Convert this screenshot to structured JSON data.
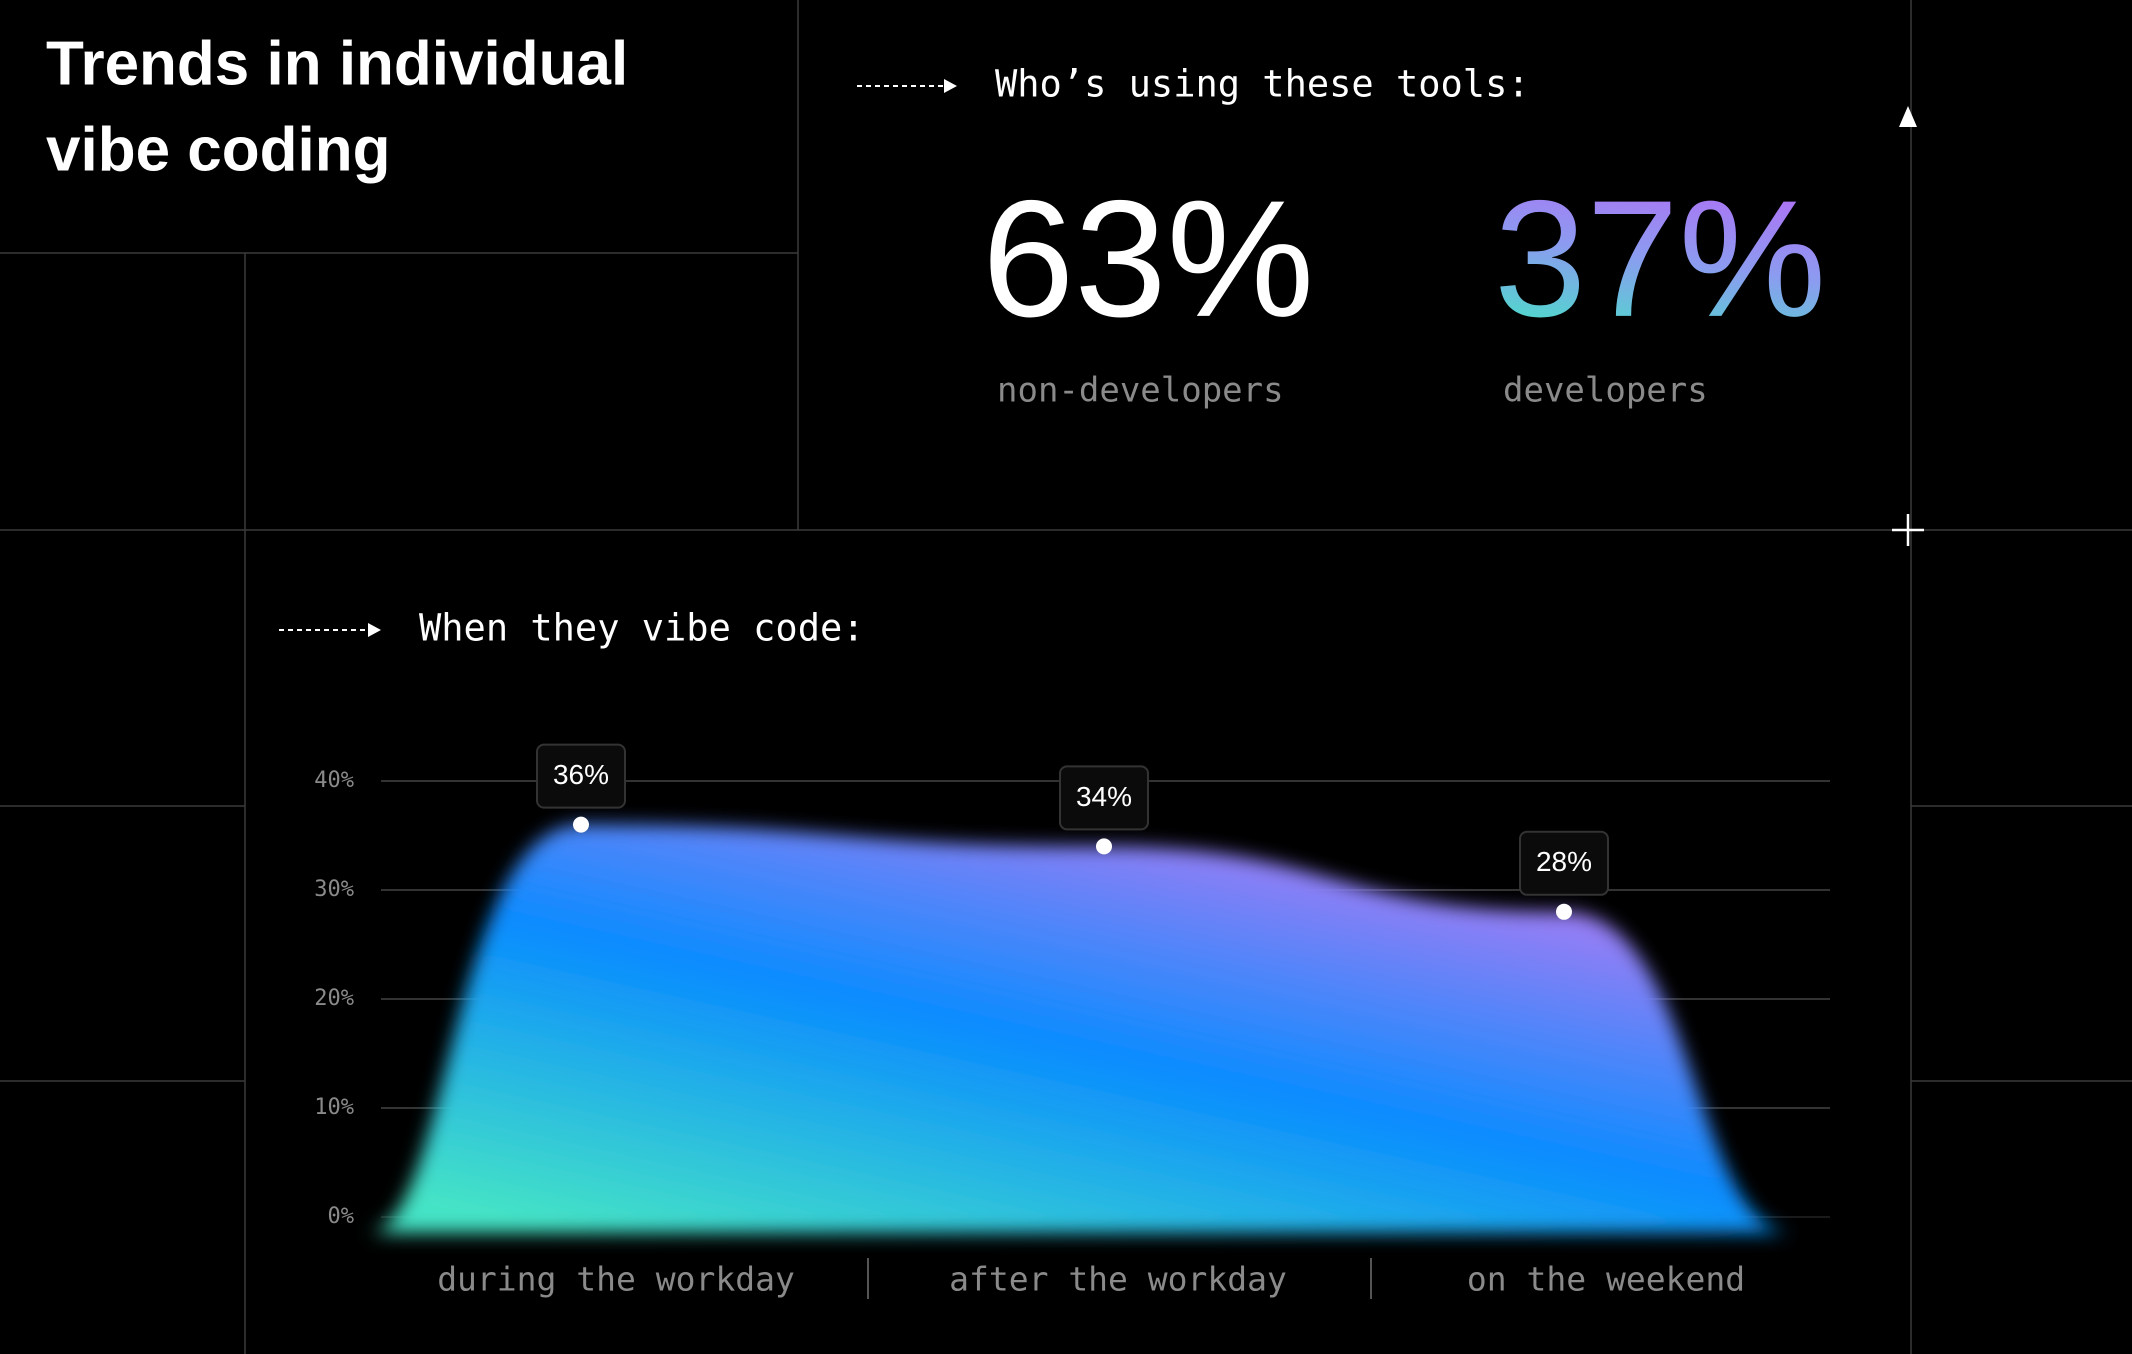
{
  "header": {
    "title_lines": [
      "Trends in individual",
      "vibe coding"
    ]
  },
  "users": {
    "heading": "Who’s using these tools:",
    "stats": [
      {
        "value": "63%",
        "label": "non-developers"
      },
      {
        "value": "37%",
        "label": "developers"
      }
    ]
  },
  "chart_data": {
    "type": "area",
    "title": "When they vibe code:",
    "categories": [
      "during the workday",
      "after the workday",
      "on the weekend"
    ],
    "values": [
      36,
      34,
      28
    ],
    "value_labels": [
      "36%",
      "34%",
      "28%"
    ],
    "ylim": [
      0,
      40
    ],
    "yticks": [
      {
        "value": 0,
        "label": "0%"
      },
      {
        "value": 10,
        "label": "10%"
      },
      {
        "value": 20,
        "label": "20%"
      },
      {
        "value": 30,
        "label": "30%"
      },
      {
        "value": 40,
        "label": "40%"
      }
    ],
    "grid": true,
    "colors": [
      "#45e3c6",
      "#0a8cff",
      "#b87af2"
    ]
  }
}
